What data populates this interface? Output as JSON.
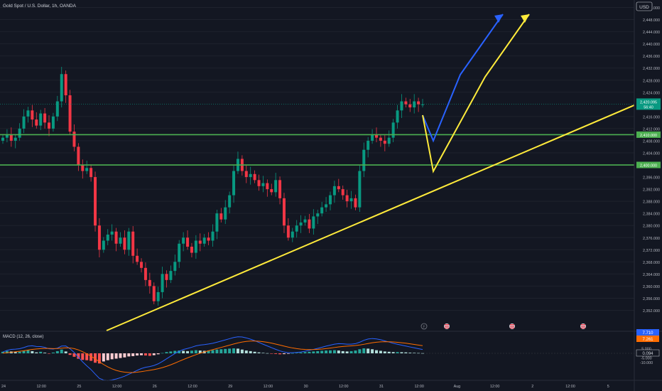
{
  "header": {
    "symbol_title": "Gold Spot / U.S. Dollar, 1h, OANDA"
  },
  "price_axis": {
    "currency": "USD",
    "ticks": [
      "2,452.000",
      "2,448.000",
      "2,444.000",
      "2,440.000",
      "2,436.000",
      "2,432.000",
      "2,428.000",
      "2,424.000",
      "2,416.000",
      "2,412.000",
      "2,408.000",
      "2,404.000",
      "2,396.000",
      "2,392.000",
      "2,388.000",
      "2,384.000",
      "2,380.000",
      "2,376.000",
      "2,372.000",
      "2,368.000",
      "2,364.000",
      "2,360.000",
      "2,356.000",
      "2,352.000"
    ],
    "tick_values": [
      2452,
      2448,
      2444,
      2440,
      2436,
      2432,
      2428,
      2424,
      2416,
      2412,
      2408,
      2404,
      2396,
      2392,
      2388,
      2384,
      2380,
      2376,
      2372,
      2368,
      2364,
      2360,
      2356,
      2352
    ],
    "current_price": "2,420.095",
    "countdown": "56:40",
    "current_value": 2420.095,
    "level_high": "2,410.000",
    "level_high_value": 2410,
    "level_low": "2,400.000",
    "level_low_value": 2400
  },
  "macd": {
    "title": "MACD (12, 26, close)",
    "axis_ticks": [
      "5.000",
      "-5.000",
      "-10.000"
    ],
    "axis_values": [
      5,
      -5,
      -10
    ],
    "label_top": "7.710",
    "label_mid": "7.261",
    "label_hist": "0.094"
  },
  "time_axis": {
    "labels": [
      "24",
      "12:00",
      "25",
      "12:00",
      "26",
      "12:00",
      "29",
      "12:00",
      "30",
      "12:00",
      "31",
      "12:00",
      "Aug",
      "12:00",
      "2",
      "12:00",
      "5"
    ]
  },
  "colors": {
    "background": "#131722",
    "bull": "#089981",
    "bear": "#f23645",
    "level_line": "#4caf50",
    "trend_line": "#ffeb3b",
    "projection_blue": "#2962ff"
  },
  "chart_data": {
    "type": "candlestick",
    "ylim": [
      2350,
      2454
    ],
    "close_series": [
      2409,
      2410,
      2408,
      2409,
      2412,
      2416,
      2418,
      2415,
      2413,
      2417,
      2414,
      2412,
      2416,
      2421,
      2430,
      2423,
      2411,
      2406,
      2400,
      2398,
      2399,
      2396,
      2380,
      2372,
      2375,
      2377,
      2378,
      2374,
      2376,
      2372,
      2378,
      2370,
      2368,
      2366,
      2362,
      2360,
      2355,
      2358,
      2364,
      2362,
      2365,
      2368,
      2374,
      2376,
      2373,
      2371,
      2375,
      2374,
      2376,
      2375,
      2378,
      2384,
      2382,
      2386,
      2390,
      2398,
      2402,
      2398,
      2396,
      2397,
      2395,
      2393,
      2394,
      2392,
      2391,
      2395,
      2389,
      2380,
      2376,
      2378,
      2380,
      2381,
      2382,
      2379,
      2383,
      2384,
      2386,
      2387,
      2390,
      2393,
      2392,
      2390,
      2388,
      2389,
      2386,
      2398,
      2405,
      2408,
      2410,
      2409,
      2408,
      2407,
      2409,
      2414,
      2418,
      2421,
      2420,
      2419,
      2421,
      2420,
      2420
    ],
    "levels": [
      2410,
      2400
    ],
    "macd_hist": [
      1,
      1.5,
      1.2,
      0.8,
      1,
      1.6,
      2,
      1.4,
      0.6,
      1,
      0.4,
      -0.2,
      0.5,
      1.4,
      2.4,
      1.2,
      -1,
      -2.2,
      -3.5,
      -4.2,
      -4.4,
      -4.8,
      -6,
      -6.5,
      -5.2,
      -4.4,
      -3.8,
      -3.4,
      -3,
      -2.6,
      -2,
      -1.8,
      -1.4,
      -1.2,
      -1.4,
      -1.6,
      -1.2,
      -0.6,
      0.2,
      0.8,
      1.2,
      1.6,
      1.8,
      1.6,
      1.4,
      1.7,
      2,
      1.8,
      1.6,
      1.8,
      2,
      2.4,
      2.6,
      2.8,
      3,
      3.2,
      3,
      2.4,
      1.8,
      1.4,
      1,
      0.6,
      0.3,
      0.1,
      -0.2,
      -0.4,
      -0.6,
      -0.5,
      -0.3,
      0.1,
      0.3,
      0.5,
      0.8,
      1,
      1.2,
      1.4,
      1.6,
      1.8,
      1.9,
      2,
      1.8,
      1.4,
      1.2,
      1.4,
      1.8,
      2.6,
      3.2,
      3,
      2.6,
      2,
      1.6,
      1.2,
      1,
      0.8,
      0.8,
      0.7,
      0.6,
      0.4,
      0.3,
      0.2,
      0.1
    ]
  }
}
